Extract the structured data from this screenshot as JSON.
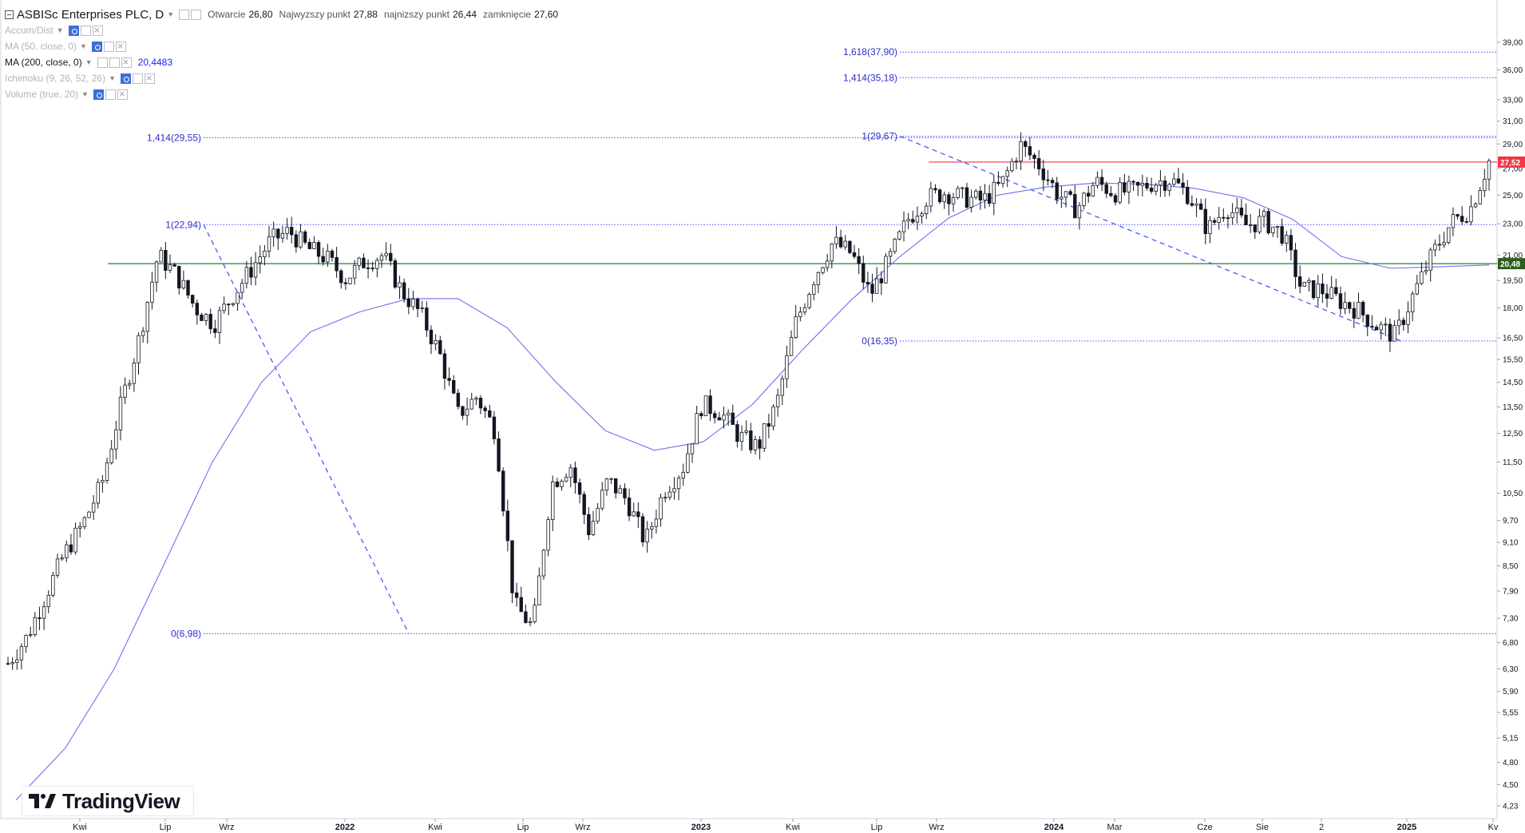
{
  "header": {
    "symbol_title": "ASBISc Enterprises PLC, D",
    "open_label": "Otwarcie",
    "open_value": "26,80",
    "high_label": "Najwyzszy punkt",
    "high_value": "27,88",
    "low_label": "najnizszy punkt",
    "low_value": "26,44",
    "close_label": "zamknięcie",
    "close_value": "27,60"
  },
  "indicators": [
    {
      "name": "Accum/Dist",
      "value": ""
    },
    {
      "name": "MA (50, close, 0)",
      "value": ""
    },
    {
      "name": "MA (200, close, 0)",
      "value": "20,4483"
    },
    {
      "name": "Ichimoku (9, 26, 52, 26)",
      "value": ""
    },
    {
      "name": "Volume (true, 20)",
      "value": ""
    }
  ],
  "fib_labels": {
    "a_0": "0(6,98)",
    "a_1": "1(22,94)",
    "a_1414": "1,414(29,55)",
    "b_0": "0(16,35)",
    "b_1": "1(29,67)",
    "b_1414": "1,414(35,18)",
    "b_1618": "1,618(37,90)"
  },
  "price_axis_ticks": [
    "39,00",
    "36,00",
    "33,00",
    "31,00",
    "29,00",
    "27,00",
    "25,00",
    "23,00",
    "21,00",
    "19,50",
    "18,00",
    "16,50",
    "15,50",
    "14,50",
    "13,50",
    "12,50",
    "11,50",
    "10,50",
    "9,70",
    "9,10",
    "8,50",
    "7,90",
    "7,30",
    "6,80",
    "6,30",
    "5,90",
    "5,55",
    "5,15",
    "4,80",
    "4,50",
    "4,23"
  ],
  "price_badges": {
    "last": "27,52",
    "ma200": "20,48"
  },
  "time_axis": [
    "Kwi",
    "Lip",
    "Wrz",
    "2022",
    "Kwi",
    "Lip",
    "Wrz",
    "2023",
    "Kwi",
    "Lip",
    "Wrz",
    "2024",
    "Mar",
    "Cze",
    "Sie",
    "2",
    "2025",
    "Kv"
  ],
  "colors": {
    "candles": "#131722",
    "ma200": "#6f6ff2",
    "fib_line": "#4b4bff",
    "resistance": "#f23645",
    "support": "#2e7d32",
    "trend_dashed": "#3b4bff",
    "last_badge": "#f23645",
    "ma_badge": "#2e5e1e"
  },
  "logo": {
    "text": "TradingView",
    "icon": "tradingview-logo-icon"
  },
  "chart_data": {
    "type": "candlestick",
    "title": "ASBISc Enterprises PLC, D",
    "scale": "log",
    "ylim": [
      4.2,
      40
    ],
    "x_ticks": [
      "Kwi",
      "Lip",
      "Wrz",
      "2022",
      "Kwi",
      "Lip",
      "Wrz",
      "2023",
      "Kwi",
      "Lip",
      "Wrz",
      "2024",
      "Mar",
      "Cze",
      "Sie",
      "2",
      "2025",
      "Kv"
    ],
    "series": [
      {
        "name": "price",
        "values": [
          6.4,
          6.9,
          7.8,
          8.8,
          9.6,
          10.8,
          13.5,
          16.5,
          21.0,
          19.8,
          18.0,
          17.2,
          18.7,
          20.2,
          21.9,
          22.5,
          21.4,
          20.8,
          19.6,
          20.6,
          21.0,
          18.9,
          17.7,
          15.8,
          13.2,
          13.9,
          12.6,
          7.6,
          7.1,
          10.8,
          11.4,
          9.4,
          10.9,
          10.3,
          9.1,
          10.6,
          11.3,
          13.6,
          13.3,
          12.4,
          12.0,
          13.6,
          17.2,
          19.7,
          21.8,
          21.1,
          18.7,
          20.7,
          23.3,
          24.8,
          25.2,
          24.8,
          24.6,
          25.8,
          28.9,
          27.3,
          25.1,
          24.0,
          26.0,
          25.2,
          25.3,
          25.9,
          26.2,
          25.0,
          22.6,
          24.2,
          22.9,
          23.2,
          22.3,
          19.0,
          19.0,
          18.4,
          17.9,
          17.1,
          16.6,
          18.8,
          21.1,
          23.1,
          24.0,
          27.6
        ]
      },
      {
        "name": "MA (200, close, 0)",
        "values": [
          4.3,
          5.0,
          6.3,
          8.5,
          11.5,
          14.5,
          16.8,
          17.8,
          18.5,
          18.5,
          17.0,
          14.5,
          12.6,
          11.9,
          12.2,
          13.6,
          15.9,
          18.4,
          20.9,
          23.4,
          25.0,
          25.6,
          25.9,
          25.8,
          25.5,
          24.8,
          23.3,
          20.9,
          20.2,
          20.3,
          20.4
        ]
      }
    ],
    "fib_levels": [
      {
        "label": "0(6,98)",
        "value": 6.98
      },
      {
        "label": "1(22,94)",
        "value": 22.94
      },
      {
        "label": "1,414(29,55)",
        "value": 29.55
      },
      {
        "label": "0(16,35)",
        "value": 16.35
      },
      {
        "label": "1(29,67)",
        "value": 29.67
      },
      {
        "label": "1,414(35,18)",
        "value": 35.18
      },
      {
        "label": "1,618(37,90)",
        "value": 37.9
      }
    ],
    "horizontal_levels": [
      {
        "value": 27.52,
        "color": "red"
      },
      {
        "value": 20.48,
        "color": "green"
      }
    ]
  }
}
